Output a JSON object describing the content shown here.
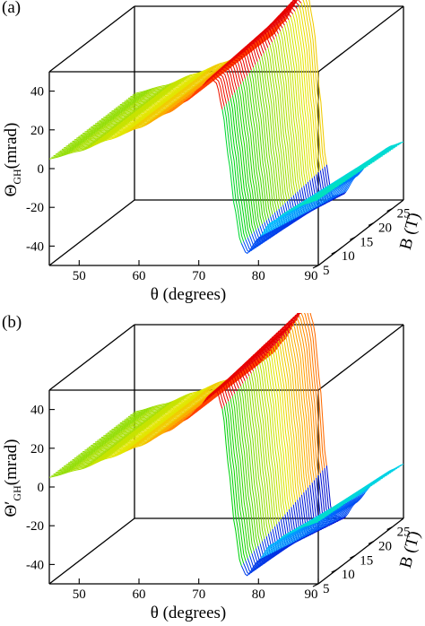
{
  "chart_data": [
    {
      "panel_label": "(a)",
      "type": "surface",
      "xlabel": "θ (degrees)",
      "ylabel_prefix": "Θ",
      "ylabel_subscript": "GH",
      "ylabel_suffix": "(mrad)",
      "zlabel": "B (T)",
      "xlim": [
        45,
        90
      ],
      "ylim": [
        -50,
        50
      ],
      "zlim": [
        5,
        28
      ],
      "xticks": [
        50,
        60,
        70,
        80,
        90
      ],
      "yticks": [
        -40,
        -20,
        0,
        20,
        40
      ],
      "zticks": [
        5,
        10,
        15,
        20,
        25
      ],
      "colormap": [
        "#0000c8",
        "#0064ff",
        "#00c8ff",
        "#00e6b4",
        "#00d200",
        "#8cdc00",
        "#e6e600",
        "#ffa000",
        "#ff3c00",
        "#e60000"
      ],
      "surface": {
        "theta": [
          45,
          50,
          55,
          60,
          65,
          68,
          70,
          72,
          73,
          74,
          75,
          76,
          77,
          78,
          80,
          82,
          85,
          88,
          90
        ],
        "field_B_min": [
          5,
          9,
          15,
          21,
          29,
          35,
          41,
          47,
          44,
          30,
          5,
          -20,
          -38,
          -44,
          -36,
          -28,
          -22,
          -18,
          -16
        ],
        "field_B_max": [
          5,
          9,
          15,
          21,
          29,
          35,
          42,
          52,
          58,
          56,
          40,
          5,
          -30,
          -48,
          -47,
          -38,
          -28,
          -22,
          -20
        ]
      }
    },
    {
      "panel_label": "(b)",
      "type": "surface",
      "xlabel": "θ (degrees)",
      "ylabel_prefix": "Θ′",
      "ylabel_subscript": "GH",
      "ylabel_suffix": "(mrad)",
      "zlabel": "B (T)",
      "xlim": [
        45,
        90
      ],
      "ylim": [
        -50,
        50
      ],
      "zlim": [
        5,
        28
      ],
      "xticks": [
        50,
        60,
        70,
        80,
        90
      ],
      "yticks": [
        -40,
        -20,
        0,
        20,
        40
      ],
      "zticks": [
        5,
        10,
        15,
        20,
        25
      ],
      "colormap": [
        "#0000c8",
        "#0064ff",
        "#00c8ff",
        "#00e6b4",
        "#00d200",
        "#8cdc00",
        "#e6e600",
        "#ffa000",
        "#ff3c00",
        "#e60000"
      ],
      "surface": {
        "theta": [
          45,
          50,
          55,
          60,
          65,
          68,
          70,
          72,
          73,
          74,
          75,
          76,
          77,
          78,
          80,
          82,
          85,
          88,
          90
        ],
        "field_B_min": [
          5,
          9,
          15,
          21,
          29,
          35,
          41,
          48,
          50,
          40,
          10,
          -20,
          -40,
          -46,
          -38,
          -30,
          -24,
          -20,
          -18
        ],
        "field_B_max": [
          5,
          9,
          15,
          21,
          29,
          35,
          42,
          52,
          58,
          60,
          50,
          20,
          -20,
          -48,
          -50,
          -42,
          -32,
          -25,
          -22
        ]
      }
    }
  ]
}
